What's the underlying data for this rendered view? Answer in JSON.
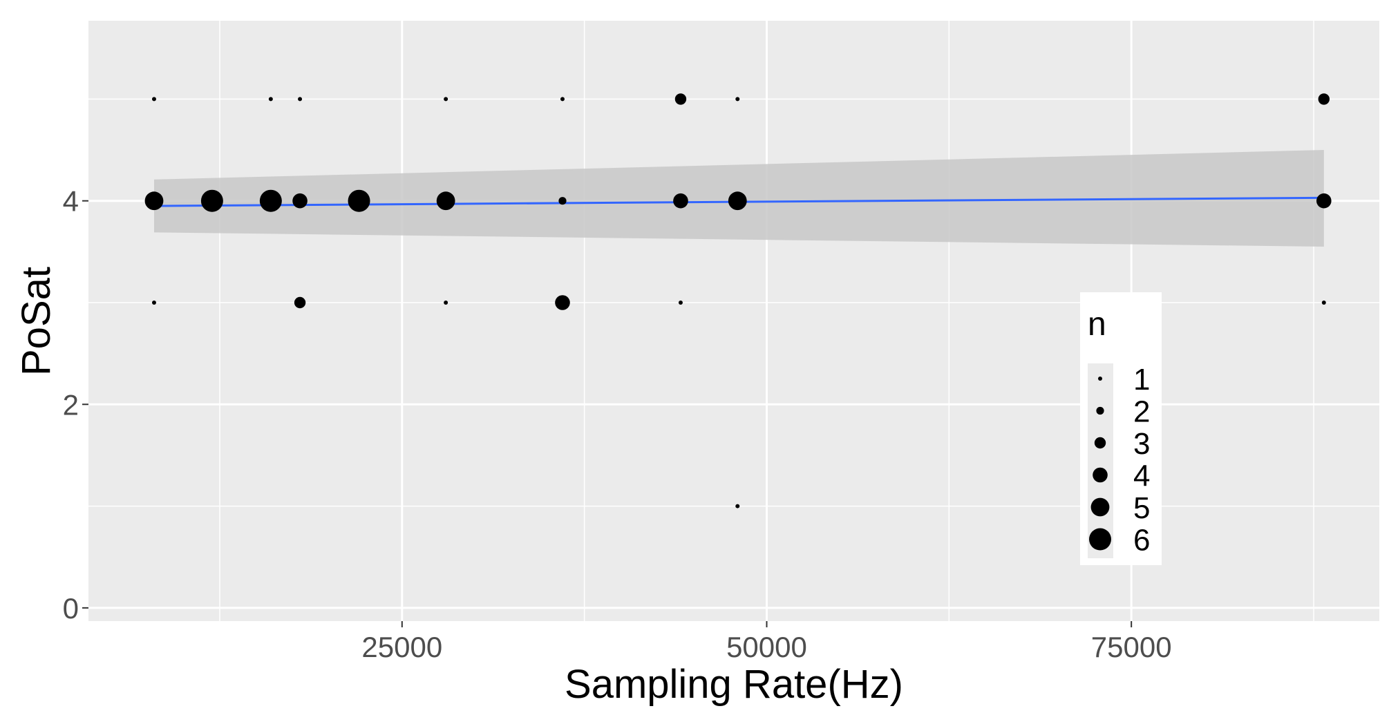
{
  "chart_data": {
    "type": "scatter",
    "xlabel": "Sampling Rate(Hz)",
    "ylabel": "PoSat",
    "xlim": [
      3500,
      92000
    ],
    "ylim": [
      -0.13,
      5.77
    ],
    "x_ticks": [
      25000,
      50000,
      75000
    ],
    "x_tick_labels": [
      "25000",
      "50000",
      "75000"
    ],
    "y_ticks": [
      0,
      2,
      4
    ],
    "y_tick_labels": [
      "0",
      "2",
      "4"
    ],
    "grid": true,
    "legend": {
      "title": "n",
      "placement": "inside-bottom-right",
      "labels": [
        "1",
        "2",
        "3",
        "4",
        "5",
        "6"
      ],
      "values": [
        1,
        2,
        3,
        4,
        5,
        6
      ]
    },
    "points": [
      {
        "x": 8000,
        "y": 5,
        "n": 1
      },
      {
        "x": 8000,
        "y": 4,
        "n": 5
      },
      {
        "x": 8000,
        "y": 3,
        "n": 1
      },
      {
        "x": 11975,
        "y": 4,
        "n": 6
      },
      {
        "x": 16000,
        "y": 5,
        "n": 1
      },
      {
        "x": 16000,
        "y": 4,
        "n": 6
      },
      {
        "x": 18000,
        "y": 5,
        "n": 1
      },
      {
        "x": 18000,
        "y": 4,
        "n": 4
      },
      {
        "x": 18000,
        "y": 3,
        "n": 3
      },
      {
        "x": 22050,
        "y": 4,
        "n": 6
      },
      {
        "x": 28000,
        "y": 5,
        "n": 1
      },
      {
        "x": 28000,
        "y": 4,
        "n": 5
      },
      {
        "x": 28000,
        "y": 3,
        "n": 1
      },
      {
        "x": 36000,
        "y": 5,
        "n": 1
      },
      {
        "x": 36000,
        "y": 4,
        "n": 2
      },
      {
        "x": 36000,
        "y": 3,
        "n": 4
      },
      {
        "x": 44100,
        "y": 5,
        "n": 3
      },
      {
        "x": 44100,
        "y": 4,
        "n": 4
      },
      {
        "x": 44100,
        "y": 3,
        "n": 1
      },
      {
        "x": 48000,
        "y": 5,
        "n": 1
      },
      {
        "x": 48000,
        "y": 4,
        "n": 5
      },
      {
        "x": 48000,
        "y": 1,
        "n": 1
      },
      {
        "x": 88200,
        "y": 5,
        "n": 3
      },
      {
        "x": 88200,
        "y": 4,
        "n": 4
      },
      {
        "x": 88200,
        "y": 3,
        "n": 1
      }
    ],
    "fit": {
      "method": "linear",
      "color": "#3366ff",
      "ribbon_color": "#c8c8c8",
      "line": [
        [
          8000,
          3.95
        ],
        [
          88200,
          4.03
        ]
      ],
      "ribbon_lower": [
        [
          8000,
          3.69
        ],
        [
          88200,
          3.55
        ]
      ],
      "ribbon_upper": [
        [
          8000,
          4.21
        ],
        [
          88200,
          4.5
        ]
      ]
    },
    "colors": {
      "panel_background": "#ebebeb",
      "gridline": "#ffffff",
      "point": "#000000"
    }
  }
}
